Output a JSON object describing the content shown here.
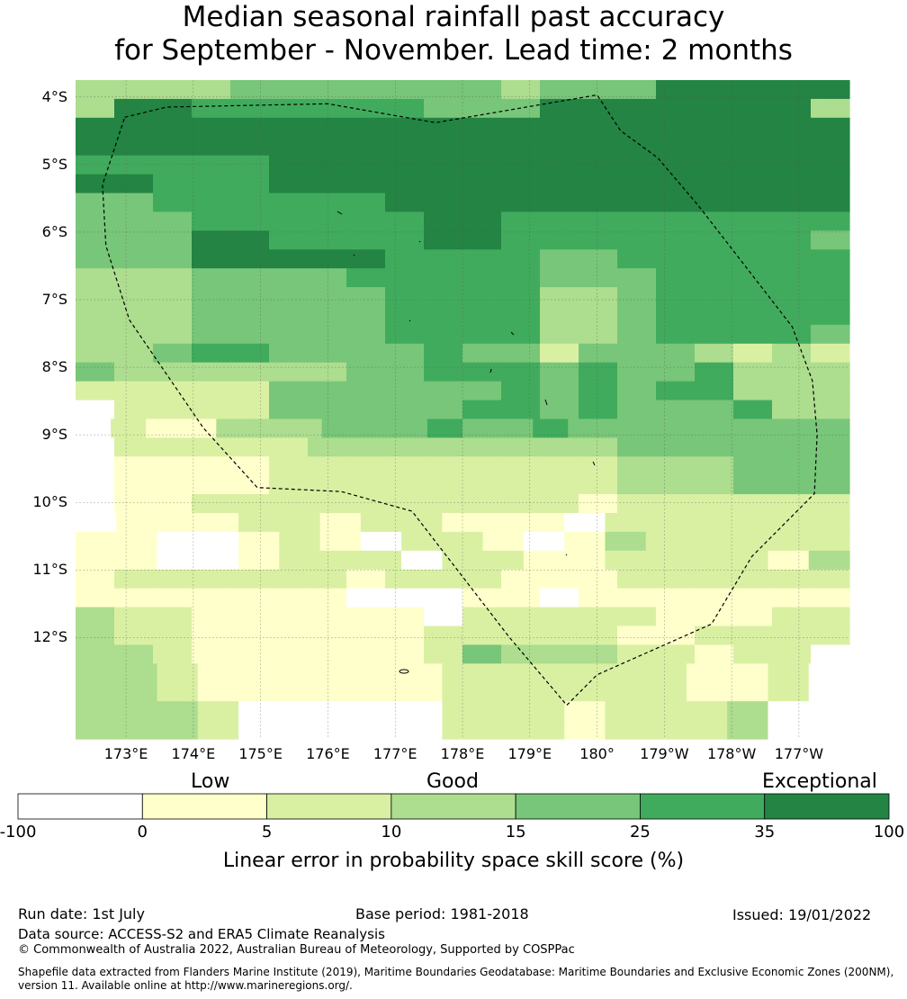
{
  "title": {
    "line1": "Median seasonal rainfall past accuracy",
    "line2": "for September - November. Lead time: 2 months"
  },
  "map": {
    "lat_labels": [
      "4°S",
      "5°S",
      "6°S",
      "7°S",
      "8°S",
      "9°S",
      "10°S",
      "11°S",
      "12°S"
    ],
    "lon_labels": [
      "173°E",
      "174°E",
      "175°E",
      "176°E",
      "177°E",
      "178°E",
      "179°E",
      "180°",
      "179°W",
      "178°W",
      "177°W"
    ],
    "extent": {
      "lon_min": 172.25,
      "lon_max": 183.75,
      "lat_top": -3.75,
      "lat_bottom": -13.5
    },
    "grid_levels": [
      "33334444444344466666",
      "36655555544466666663",
      "66666666666666666666",
      "66666666666666666666",
      "55555666666666666666",
      "66555666666666666666",
      "44555555666666666666",
      "44455555566555555555",
      "44466555566555555554",
      "44466666555544555555",
      "33344445555544455555",
      "33344444555533455555",
      "33344444555533455555",
      "33344444555533455554",
      "33455444454424443232",
      "43333334455545445333",
      "22222444444545455333",
      "02222444445545444533",
      "0211333444544544444444",
      "02222233333333444444",
      "01111222222222333444",
      "01111222222222333444",
      "01122222222221222222",
      "0111221221110222222",
      "1100121022101322222",
      "1100122202211222213",
      "12222221222111222222",
      "11111110001101111111",
      "32211111102222211122",
      "32211111122222112222",
      "33211111124333221220",
      "3321111112222221120",
      "3321111112222221120",
      "3332000002221222300",
      "3332000002221222300"
    ],
    "eez_boundary_lonlat": [
      [
        172.98,
        -4.3
      ],
      [
        173.6,
        -4.15
      ],
      [
        176.0,
        -4.1
      ],
      [
        177.6,
        -4.38
      ],
      [
        180.0,
        -3.97
      ],
      [
        180.35,
        -4.5
      ],
      [
        180.9,
        -4.9
      ],
      [
        181.5,
        -5.6
      ],
      [
        182.2,
        -6.5
      ],
      [
        182.9,
        -7.4
      ],
      [
        183.2,
        -8.2
      ],
      [
        183.27,
        -9.0
      ],
      [
        183.23,
        -9.87
      ],
      [
        182.3,
        -10.8
      ],
      [
        181.7,
        -11.8
      ],
      [
        180.0,
        -12.55
      ],
      [
        179.55,
        -13.0
      ],
      [
        178.7,
        -12.0
      ],
      [
        177.25,
        -10.13
      ],
      [
        176.2,
        -9.84
      ],
      [
        174.95,
        -9.78
      ],
      [
        174.15,
        -8.9
      ],
      [
        173.05,
        -7.3
      ],
      [
        172.7,
        -6.2
      ],
      [
        172.65,
        -5.3
      ],
      [
        172.98,
        -4.3
      ]
    ]
  },
  "legend": {
    "colors": [
      "#ffffff",
      "#ffffcc",
      "#d9f0a3",
      "#addd8e",
      "#78c679",
      "#41ab5d",
      "#238443"
    ],
    "categories": [
      "Low",
      "Good",
      "Exceptional"
    ],
    "ticks": [
      "-100",
      "0",
      "5",
      "10",
      "15",
      "25",
      "35",
      "100"
    ],
    "label": "Linear error in probability space skill score (%)"
  },
  "footer": {
    "run_date": "Run date: 1st July",
    "base_period": "Base period: 1981-2018",
    "issued": "Issued: 19/01/2022",
    "data_source": "Data source: ACCESS-S2 and ERA5 Climate Reanalysis",
    "copyright": "© Commonwealth of Australia 2022, Australian Bureau of Meteorology, Supported by COSPPac",
    "shapefile_line1": "Shapefile data extracted from Flanders Marine Institute (2019), Maritime Boundaries Geodatabase: Maritime Boundaries and Exclusive Economic Zones (200NM),",
    "shapefile_line2": "version 11. Available online at http://www.marineregions.org/."
  }
}
